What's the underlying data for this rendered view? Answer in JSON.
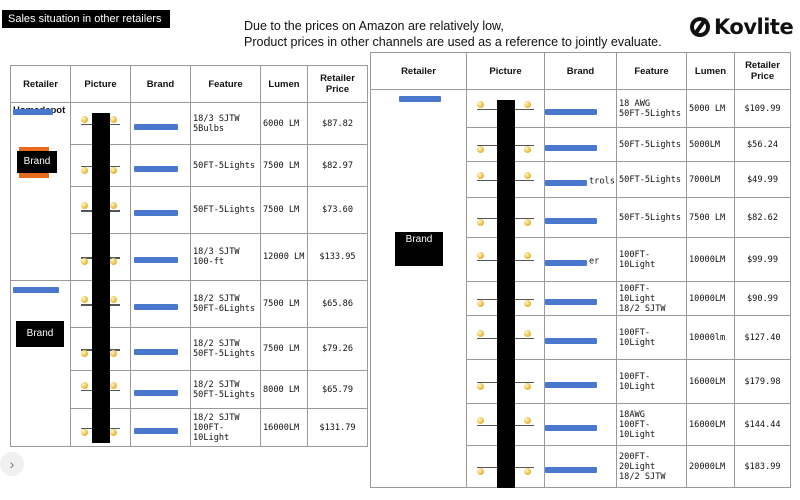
{
  "header": {
    "section_title": "Sales situation in other retailers",
    "note_line1": "Due to the prices on Amazon are relatively low,",
    "note_line2": "Product prices in other channels are used as a reference to jointly evaluate.",
    "logo_text": "Kovlite",
    "logo_icon": "kovlite-logo-icon"
  },
  "columns": {
    "retailer": "Retailer",
    "picture": "Picture",
    "brand": "Brand",
    "feature": "Feature",
    "lumen": "Lumen",
    "retailer_price": "Retailer Price"
  },
  "left_table": {
    "retailer_1_partial": "Homedepot",
    "brand_tag_1": "Brand",
    "brand_tag_2": "Brand",
    "rows": [
      {
        "feature": "18/3 SJTW\n5Bulbs",
        "lumen": "6000 LM",
        "price": "$87.82"
      },
      {
        "feature": "50FT-5Lights",
        "lumen": "7500 LM",
        "price": "$82.97"
      },
      {
        "feature": "50FT-5Lights",
        "lumen": "7500 LM",
        "price": "$73.60"
      },
      {
        "feature": "18/3 SJTW\n100-ft",
        "lumen": "12000 LM",
        "price": "$133.95"
      },
      {
        "feature": "18/2 SJTW\n50FT-6Lights",
        "lumen": "7500 LM",
        "price": "$65.86"
      },
      {
        "feature": "18/2 SJTW\n50FT-5Lights",
        "lumen": "7500 LM",
        "price": "$79.26"
      },
      {
        "feature": "18/2 SJTW\n50FT-5Lights",
        "lumen": "8000 LM",
        "price": "$65.79"
      },
      {
        "feature": "18/2 SJTW\n100FT-10Light",
        "lumen": "16000LM",
        "price": "$131.79"
      }
    ]
  },
  "right_table": {
    "brand_tag": "Brand",
    "rows": [
      {
        "brand_partial": "",
        "feature": "18 AWG\n50FT-5Lights",
        "lumen": "5000 LM",
        "price": "$109.99"
      },
      {
        "brand_partial": "",
        "feature": "50FT-5Lights",
        "lumen": "5000LM",
        "price": "$56.24"
      },
      {
        "brand_partial": "trols",
        "feature": "50FT-5Lights",
        "lumen": "7000LM",
        "price": "$49.99"
      },
      {
        "brand_partial": "",
        "feature": "50FT-5Lights",
        "lumen": "7500 LM",
        "price": "$82.62"
      },
      {
        "brand_partial": "er",
        "feature": "100FT-10Light",
        "lumen": "10000LM",
        "price": "$99.99"
      },
      {
        "brand_partial": "",
        "feature": "100FT-10Light\n18/2 SJTW",
        "lumen": "10000LM",
        "price": "$90.99"
      },
      {
        "brand_partial": "",
        "feature": "100FT-10Light",
        "lumen": "10000lm",
        "price": "$127.40"
      },
      {
        "brand_partial": "",
        "feature": "100FT-10Light",
        "lumen": "16000LM",
        "price": "$179.98"
      },
      {
        "brand_partial": "",
        "feature": "18AWG\n100FT-10Light",
        "lumen": "16000LM",
        "price": "$144.44"
      },
      {
        "brand_partial": "",
        "feature": "200FT-20Light\n18/2 SJTW",
        "lumen": "20000LM",
        "price": "$183.99"
      }
    ]
  },
  "nav": {
    "next_icon": "chevron-right-icon",
    "next_glyph": "›"
  },
  "colors": {
    "redaction": "#4a78cf",
    "black_box": "#000000",
    "orange_accent": "#e86a1d"
  }
}
